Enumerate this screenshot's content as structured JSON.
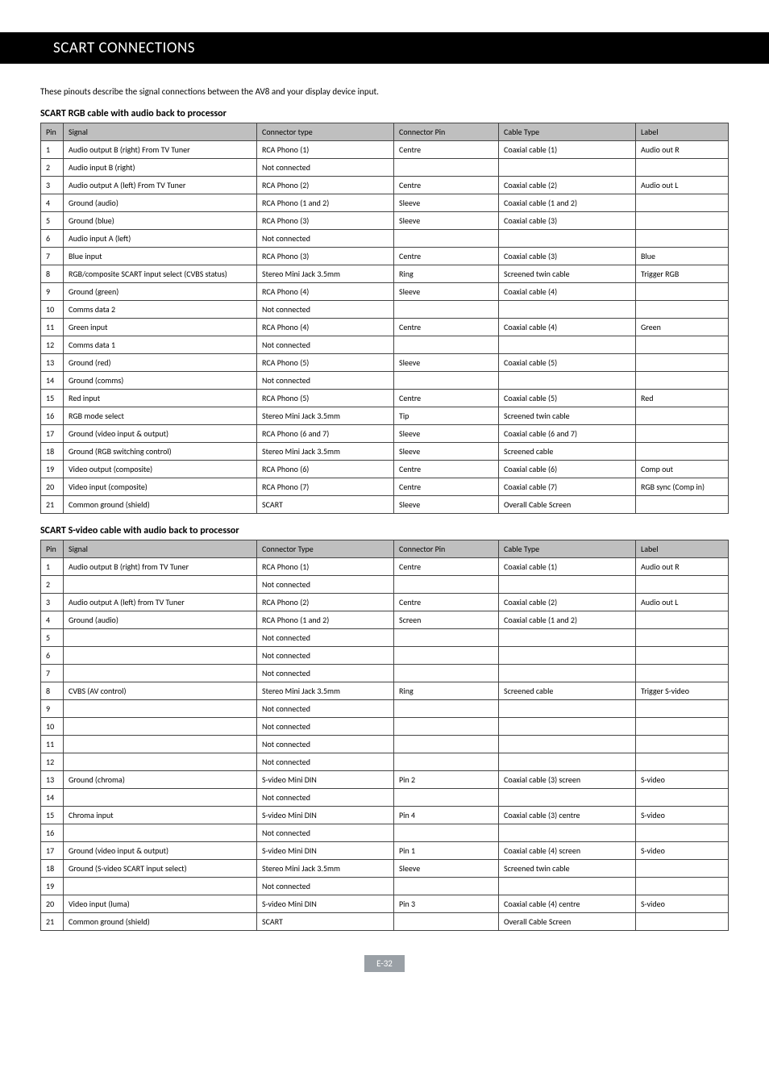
{
  "header": {
    "title": "SCART CONNECTIONS"
  },
  "intro": "These pinouts describe the signal connections between the AV8 and your display device input.",
  "table1": {
    "title": "SCART RGB cable with audio back to processor",
    "columns": [
      "Pin",
      "Signal",
      "Connector type",
      "Connector Pin",
      "Cable Type",
      "Label"
    ],
    "rows": [
      [
        "1",
        "Audio output B (right) From TV Tuner",
        "RCA Phono (1)",
        "Centre",
        "Coaxial cable (1)",
        "Audio out R"
      ],
      [
        "2",
        "Audio input B (right)",
        "Not connected",
        "",
        "",
        ""
      ],
      [
        "3",
        "Audio output A (left) From TV Tuner",
        "RCA Phono (2)",
        "Centre",
        "Coaxial cable (2)",
        "Audio out L"
      ],
      [
        "4",
        "Ground (audio)",
        "RCA Phono (1 and 2)",
        "Sleeve",
        "Coaxial cable (1 and 2)",
        ""
      ],
      [
        "5",
        "Ground (blue)",
        "RCA Phono (3)",
        "Sleeve",
        "Coaxial cable (3)",
        ""
      ],
      [
        "6",
        "Audio input A (left)",
        "Not connected",
        "",
        "",
        ""
      ],
      [
        "7",
        "Blue input",
        "RCA Phono (3)",
        "Centre",
        "Coaxial cable (3)",
        "Blue"
      ],
      [
        "8",
        "RGB/composite SCART input select (CVBS status)",
        "Stereo Mini Jack 3.5mm",
        "Ring",
        "Screened twin cable",
        "Trigger RGB"
      ],
      [
        "9",
        "Ground (green)",
        "RCA Phono (4)",
        "Sleeve",
        "Coaxial cable (4)",
        ""
      ],
      [
        "10",
        "Comms data 2",
        "Not connected",
        "",
        "",
        ""
      ],
      [
        "11",
        "Green input",
        "RCA Phono (4)",
        "Centre",
        "Coaxial cable (4)",
        "Green"
      ],
      [
        "12",
        "Comms data 1",
        "Not connected",
        "",
        "",
        ""
      ],
      [
        "13",
        "Ground (red)",
        "RCA Phono (5)",
        "Sleeve",
        "Coaxial cable (5)",
        ""
      ],
      [
        "14",
        "Ground (comms)",
        "Not connected",
        "",
        "",
        ""
      ],
      [
        "15",
        "Red input",
        "RCA Phono (5)",
        "Centre",
        "Coaxial cable (5)",
        "Red"
      ],
      [
        "16",
        "RGB mode select",
        "Stereo Mini Jack 3.5mm",
        "Tip",
        "Screened twin cable",
        ""
      ],
      [
        "17",
        "Ground (video input & output)",
        "RCA Phono (6 and 7)",
        "Sleeve",
        "Coaxial cable (6 and 7)",
        ""
      ],
      [
        "18",
        "Ground (RGB switching control)",
        "Stereo Mini Jack 3.5mm",
        "Sleeve",
        "Screened cable",
        ""
      ],
      [
        "19",
        "Video output (composite)",
        "RCA Phono (6)",
        "Centre",
        "Coaxial cable (6)",
        "Comp out"
      ],
      [
        "20",
        "Video input (composite)",
        "RCA Phono (7)",
        "Centre",
        "Coaxial cable (7)",
        "RGB sync (Comp in)"
      ],
      [
        "21",
        "Common ground (shield)",
        "SCART",
        "Sleeve",
        "Overall Cable Screen",
        ""
      ]
    ]
  },
  "table2": {
    "title": "SCART S-video cable with audio back to processor",
    "columns": [
      "Pin",
      "Signal",
      "Connector Type",
      "Connector Pin",
      "Cable Type",
      "Label"
    ],
    "rows": [
      [
        "1",
        "Audio output B (right) from TV Tuner",
        "RCA Phono (1)",
        "Centre",
        "Coaxial cable (1)",
        "Audio out R"
      ],
      [
        "2",
        "",
        "Not connected",
        "",
        "",
        ""
      ],
      [
        "3",
        "Audio output A (left) from TV Tuner",
        "RCA Phono (2)",
        "Centre",
        "Coaxial cable (2)",
        "Audio out L"
      ],
      [
        "4",
        "Ground (audio)",
        "RCA Phono (1 and 2)",
        "Screen",
        "Coaxial cable (1 and 2)",
        ""
      ],
      [
        "5",
        "",
        "Not connected",
        "",
        "",
        ""
      ],
      [
        "6",
        "",
        "Not connected",
        "",
        "",
        ""
      ],
      [
        "7",
        "",
        "Not connected",
        "",
        "",
        ""
      ],
      [
        "8",
        "CVBS (AV control)",
        "Stereo Mini Jack 3.5mm",
        "Ring",
        "Screened cable",
        "Trigger S-video"
      ],
      [
        "9",
        "",
        "Not connected",
        "",
        "",
        ""
      ],
      [
        "10",
        "",
        "Not connected",
        "",
        "",
        ""
      ],
      [
        "11",
        "",
        "Not connected",
        "",
        "",
        ""
      ],
      [
        "12",
        "",
        "Not connected",
        "",
        "",
        ""
      ],
      [
        "13",
        "Ground (chroma)",
        "S-video Mini DIN",
        "Pin 2",
        "Coaxial cable (3) screen",
        "S-video"
      ],
      [
        "14",
        "",
        "Not connected",
        "",
        "",
        ""
      ],
      [
        "15",
        "Chroma input",
        "S-video Mini DIN",
        "Pin 4",
        "Coaxial cable (3) centre",
        "S-video"
      ],
      [
        "16",
        "",
        "Not connected",
        "",
        "",
        ""
      ],
      [
        "17",
        "Ground (video input & output)",
        "S-video Mini DIN",
        "Pin 1",
        "Coaxial cable (4) screen",
        "S-video"
      ],
      [
        "18",
        "Ground (S-video SCART input select)",
        "Stereo Mini Jack 3.5mm",
        "Sleeve",
        "Screened twin cable",
        ""
      ],
      [
        "19",
        "",
        "Not connected",
        "",
        "",
        ""
      ],
      [
        "20",
        "Video input (luma)",
        "S-video Mini DIN",
        "Pin 3",
        "Coaxial cable (4) centre",
        "S-video"
      ],
      [
        "21",
        "Common ground (shield)",
        "SCART",
        "",
        "Overall Cable Screen",
        ""
      ]
    ]
  },
  "footer": {
    "page_num": "E-32"
  }
}
